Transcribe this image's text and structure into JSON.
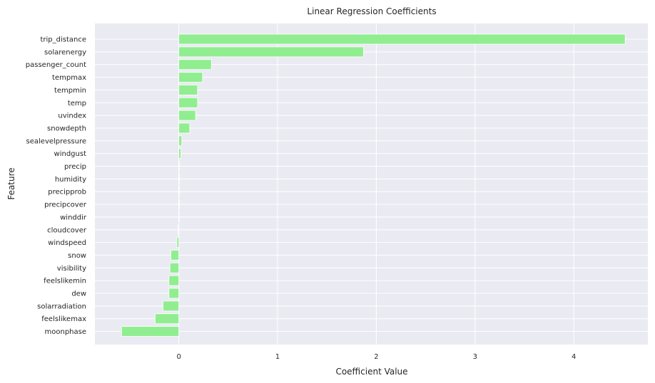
{
  "chart_data": {
    "type": "bar",
    "orientation": "horizontal",
    "title": "Linear Regression Coefficients",
    "xlabel": "Coefficient Value",
    "ylabel": "Feature",
    "xlim": [
      -0.85,
      4.75
    ],
    "xticks": [
      0,
      1,
      2,
      3,
      4
    ],
    "grid": true,
    "categories": [
      "trip_distance",
      "solarenergy",
      "passenger_count",
      "tempmax",
      "tempmin",
      "temp",
      "uvindex",
      "snowdepth",
      "sealevelpressure",
      "windgust",
      "precip",
      "humidity",
      "precipprob",
      "precipcover",
      "winddir",
      "cloudcover",
      "windspeed",
      "snow",
      "visibility",
      "feelslikemin",
      "dew",
      "solarradiation",
      "feelslikemax",
      "moonphase"
    ],
    "values": [
      4.52,
      1.87,
      0.33,
      0.24,
      0.19,
      0.19,
      0.17,
      0.11,
      0.03,
      0.02,
      0.005,
      0.004,
      0.003,
      0.002,
      -0.002,
      -0.005,
      -0.02,
      -0.08,
      -0.09,
      -0.1,
      -0.1,
      -0.16,
      -0.24,
      -0.58
    ],
    "colors": {
      "bar": "#90ee90",
      "bar_edge": "#ffffff",
      "plot_bg": "#eaeaf2",
      "grid": "#ffffff"
    }
  }
}
